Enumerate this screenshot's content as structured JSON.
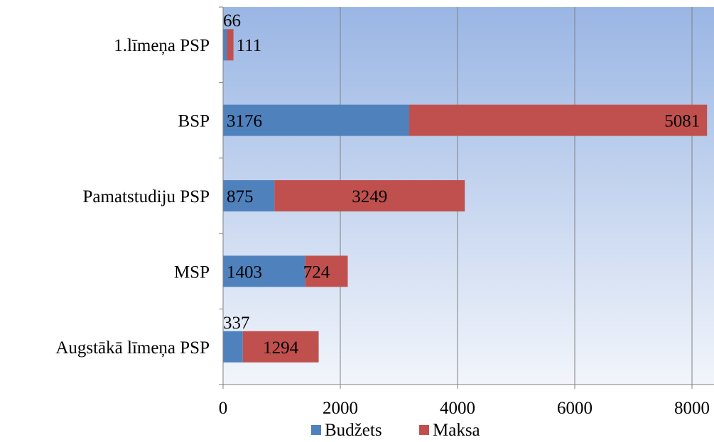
{
  "chart_data": {
    "type": "bar",
    "orientation": "horizontal",
    "stacked": true,
    "title": "",
    "xlabel": "",
    "ylabel": "",
    "categories": [
      "1.līmeņa PSP",
      "BSP",
      "Pamatstudiju PSP",
      "MSP",
      "Augstākā līmeņa PSP"
    ],
    "series": [
      {
        "name": "Budžets",
        "values": [
          66,
          3176,
          875,
          1403,
          337
        ],
        "color": "#4f81bd"
      },
      {
        "name": "Maksa",
        "values": [
          111,
          5081,
          3249,
          724,
          1294
        ],
        "color": "#c0504d"
      }
    ],
    "xlim": [
      0,
      8300
    ],
    "xticks": [
      0,
      2000,
      4000,
      6000,
      8000
    ],
    "grid": "vertical",
    "legend_position": "bottom",
    "plot_background": "gradient light blue"
  }
}
